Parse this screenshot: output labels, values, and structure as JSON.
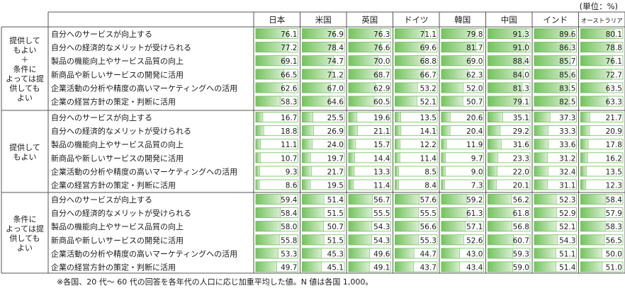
{
  "unit_label": "(単位：%)",
  "note": "※各国、20 代～ 60 代の回答を各年代の人口に応じ加重平均した値。N 値は各国 1,000。",
  "colors": {
    "bar_fill": "#74c35e",
    "bar_light": "#d9efd2",
    "bar_border": "#6fbf58",
    "grid": "#555555"
  },
  "chart_data": {
    "type": "table",
    "countries": [
      "日本",
      "米国",
      "英国",
      "ドイツ",
      "韓国",
      "中国",
      "インド",
      "オーストラリア"
    ],
    "items": [
      "自分へのサービスが向上する",
      "自分への経済的なメリットが受けられる",
      "製品の機能向上やサービス品質の向上",
      "新商品や新しいサービスの開発に活用",
      "企業活動の分析や精度の高いマーケティングへの活用",
      "企業の経営方針の策定・判断に活用"
    ],
    "groups": [
      {
        "label_lines": [
          "提供して",
          "もよい",
          "＋",
          "条件に",
          "よっては提",
          "供しても",
          "よい"
        ],
        "rows": [
          [
            76.1,
            76.9,
            76.3,
            71.1,
            79.8,
            91.3,
            89.6,
            80.1
          ],
          [
            77.2,
            78.4,
            76.6,
            69.6,
            81.7,
            91.0,
            86.3,
            78.8
          ],
          [
            69.1,
            74.7,
            70.0,
            68.8,
            69.0,
            88.4,
            85.7,
            76.1
          ],
          [
            66.5,
            71.2,
            68.7,
            66.7,
            62.3,
            84.0,
            85.6,
            72.7
          ],
          [
            62.6,
            67.0,
            62.9,
            53.2,
            52.0,
            81.3,
            83.5,
            63.5
          ],
          [
            58.3,
            64.6,
            60.5,
            52.1,
            50.7,
            79.1,
            82.5,
            63.3
          ]
        ]
      },
      {
        "label_lines": [
          "提供して",
          "もよい"
        ],
        "rows": [
          [
            16.7,
            25.5,
            19.6,
            13.5,
            20.6,
            35.1,
            37.3,
            21.7
          ],
          [
            18.8,
            26.9,
            21.1,
            14.1,
            20.4,
            29.2,
            33.3,
            20.9
          ],
          [
            11.1,
            24.0,
            15.7,
            12.2,
            11.9,
            31.6,
            33.6,
            17.8
          ],
          [
            10.7,
            19.7,
            14.4,
            11.4,
            9.7,
            23.3,
            31.2,
            16.2
          ],
          [
            9.3,
            21.7,
            13.3,
            8.5,
            9.0,
            22.0,
            32.4,
            13.5
          ],
          [
            8.6,
            19.5,
            11.4,
            8.4,
            7.3,
            20.1,
            31.1,
            12.3
          ]
        ]
      },
      {
        "label_lines": [
          "条件に",
          "よっては提",
          "供しても",
          "よい"
        ],
        "rows": [
          [
            59.4,
            51.4,
            56.7,
            57.6,
            59.2,
            56.2,
            52.3,
            58.4
          ],
          [
            58.4,
            51.5,
            55.5,
            55.5,
            61.3,
            61.8,
            52.9,
            57.9
          ],
          [
            58.0,
            50.7,
            54.3,
            56.6,
            57.1,
            56.8,
            52.1,
            58.3
          ],
          [
            55.8,
            51.5,
            54.3,
            55.3,
            52.6,
            60.7,
            54.3,
            56.5
          ],
          [
            53.3,
            45.3,
            49.6,
            44.7,
            43.0,
            59.3,
            51.1,
            50.0
          ],
          [
            49.7,
            45.1,
            49.1,
            43.7,
            43.4,
            59.0,
            51.4,
            51.0
          ]
        ]
      }
    ],
    "xlim": [
      0,
      100
    ]
  }
}
